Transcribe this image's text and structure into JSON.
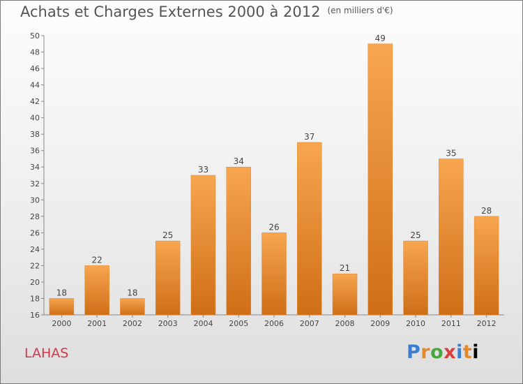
{
  "title": "Achats et Charges Externes 2000 à 2012",
  "unit_note": "(en milliers d'€)",
  "town": "LAHAS",
  "logo_text": "Proxiti",
  "colors": {
    "bar_light": "#f7a64f",
    "bar_dark": "#cf6e17",
    "town": "#d4384a"
  },
  "chart_data": {
    "type": "bar",
    "title": "Achats et Charges Externes 2000 à 2012",
    "categories": [
      "2000",
      "2001",
      "2002",
      "2003",
      "2004",
      "2005",
      "2006",
      "2007",
      "2008",
      "2009",
      "2010",
      "2011",
      "2012"
    ],
    "values": [
      18,
      22,
      18,
      25,
      33,
      34,
      26,
      37,
      21,
      49,
      25,
      35,
      28
    ],
    "ylim": [
      16,
      50
    ],
    "yticks": [
      16,
      18,
      20,
      22,
      24,
      26,
      28,
      30,
      32,
      34,
      36,
      38,
      40,
      42,
      44,
      46,
      48,
      50
    ],
    "grid": false,
    "legend": "none"
  }
}
